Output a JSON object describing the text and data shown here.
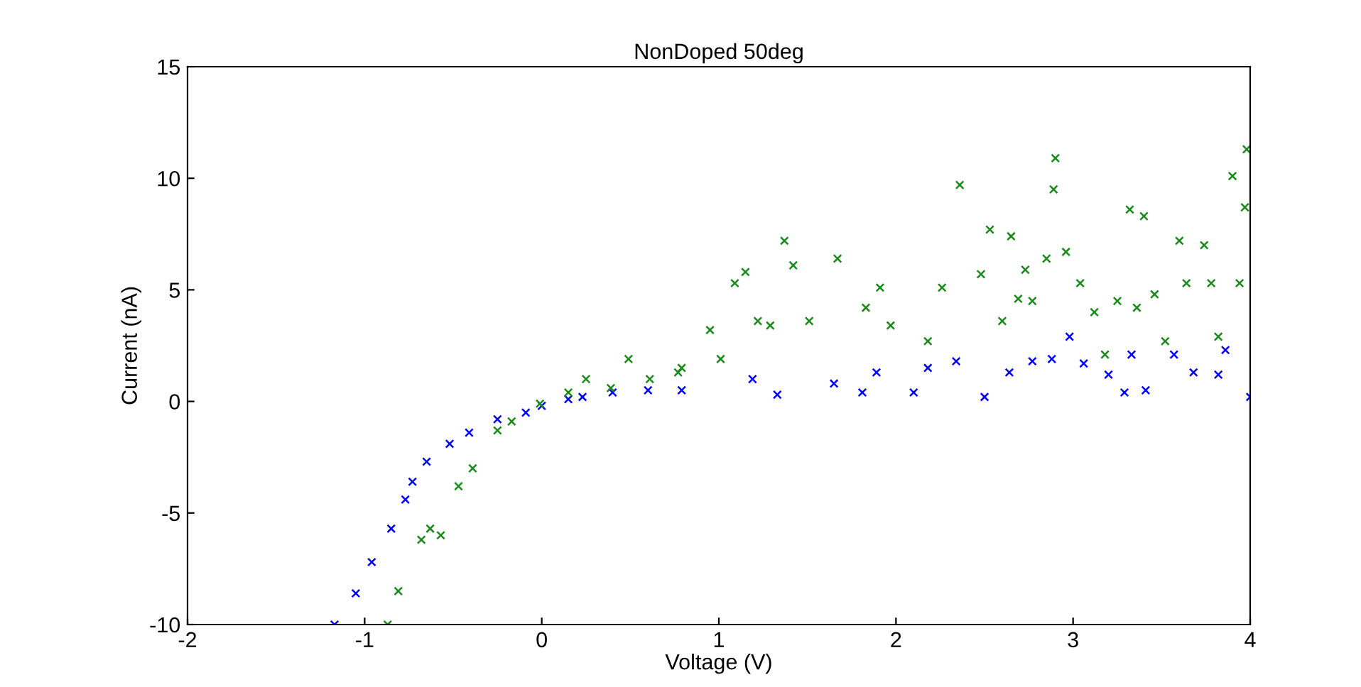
{
  "chart_data": {
    "type": "scatter",
    "title": "NonDoped 50deg",
    "xlabel": "Voltage (V)",
    "ylabel": "Current (nA)",
    "xlim": [
      -2,
      4
    ],
    "ylim": [
      -10,
      15
    ],
    "xticks": [
      -2,
      -1,
      0,
      1,
      2,
      3,
      4
    ],
    "yticks": [
      -10,
      -5,
      0,
      5,
      10,
      15
    ],
    "marker": "cross",
    "grid": false,
    "legend": false,
    "series": [
      {
        "color": "#0000ff",
        "x": [
          -1.17,
          -1.05,
          -0.96,
          -0.85,
          -0.77,
          -0.73,
          -0.65,
          -0.52,
          -0.41,
          -0.25,
          -0.09,
          0.0,
          0.15,
          0.23,
          0.4,
          0.6,
          0.79,
          1.19,
          1.33,
          1.65,
          1.81,
          1.89,
          2.1,
          2.18,
          2.34,
          2.5,
          2.64,
          2.77,
          2.88,
          2.98,
          3.06,
          3.2,
          3.29,
          3.33,
          3.41,
          3.57,
          3.68,
          3.82,
          3.86,
          4.0
        ],
        "values": [
          -10,
          -8.6,
          -7.2,
          -5.7,
          -4.4,
          -3.6,
          -2.7,
          -1.9,
          -1.4,
          -0.8,
          -0.5,
          -0.2,
          0.1,
          0.2,
          0.4,
          0.5,
          0.5,
          1.0,
          0.3,
          0.8,
          0.4,
          1.3,
          0.4,
          1.5,
          1.8,
          0.2,
          1.3,
          1.8,
          1.9,
          2.9,
          1.7,
          1.2,
          0.4,
          2.1,
          0.5,
          2.1,
          1.3,
          1.2,
          2.3,
          0.2
        ]
      },
      {
        "color": "#1a8a1a",
        "x": [
          -0.87,
          -0.81,
          -0.68,
          -0.63,
          -0.57,
          -0.47,
          -0.39,
          -0.25,
          -0.17,
          -0.01,
          0.15,
          0.25,
          0.39,
          0.49,
          0.61,
          0.77,
          0.79,
          0.95,
          1.01,
          1.09,
          1.15,
          1.22,
          1.29,
          1.37,
          1.42,
          1.51,
          1.67,
          1.83,
          1.91,
          1.97,
          2.18,
          2.26,
          2.36,
          2.48,
          2.53,
          2.6,
          2.65,
          2.69,
          2.73,
          2.77,
          2.85,
          2.89,
          2.9,
          2.96,
          3.04,
          3.12,
          3.18,
          3.25,
          3.32,
          3.36,
          3.4,
          3.46,
          3.52,
          3.6,
          3.64,
          3.74,
          3.78,
          3.82,
          3.9,
          3.94,
          3.97,
          3.98
        ],
        "values": [
          -10,
          -8.5,
          -6.2,
          -5.7,
          -6.0,
          -3.8,
          -3.0,
          -1.3,
          -0.9,
          -0.1,
          0.4,
          1.0,
          0.6,
          1.9,
          1.0,
          1.3,
          1.5,
          3.2,
          1.9,
          5.3,
          5.8,
          3.6,
          3.4,
          7.2,
          6.1,
          3.6,
          6.4,
          4.2,
          5.1,
          3.4,
          2.7,
          5.1,
          9.7,
          5.7,
          7.7,
          3.6,
          7.4,
          4.6,
          5.9,
          4.5,
          6.4,
          9.5,
          10.9,
          6.7,
          5.3,
          4.0,
          2.1,
          4.5,
          8.6,
          4.2,
          8.3,
          4.8,
          2.7,
          7.2,
          5.3,
          7.0,
          5.3,
          2.9,
          10.1,
          5.3,
          8.7,
          11.3
        ]
      }
    ]
  }
}
